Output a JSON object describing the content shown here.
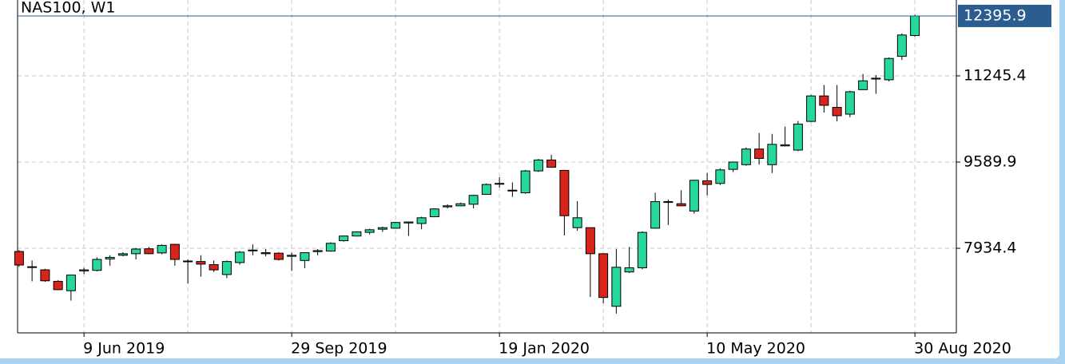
{
  "chart_data": {
    "type": "candlestick",
    "title": "NAS100, W1",
    "categories": [
      null,
      null,
      null,
      null,
      null,
      "9 Jun 2019",
      null,
      null,
      null,
      null,
      null,
      null,
      null,
      null,
      null,
      null,
      null,
      null,
      null,
      null,
      null,
      "29 Sep 2019",
      null,
      null,
      null,
      null,
      null,
      null,
      null,
      null,
      null,
      null,
      null,
      null,
      null,
      null,
      null,
      "19 Jan 2020",
      null,
      null,
      null,
      null,
      null,
      null,
      null,
      null,
      null,
      null,
      null,
      null,
      null,
      null,
      null,
      "10 May 2020",
      null,
      null,
      null,
      null,
      null,
      null,
      null,
      null,
      null,
      null,
      null,
      null,
      null,
      null,
      null,
      "30 Aug 2020"
    ],
    "open": [
      7873,
      7570,
      7520,
      7300,
      7120,
      7500,
      7510,
      7730,
      7800,
      7830,
      7925,
      7845,
      8010,
      7690,
      7680,
      7620,
      7430,
      7660,
      7890,
      7850,
      7840,
      7780,
      7700,
      7870,
      7880,
      8080,
      8170,
      8240,
      8300,
      8320,
      8420,
      8410,
      8540,
      8730,
      8750,
      8780,
      8970,
      9180,
      9050,
      9000,
      9420,
      9630,
      9430,
      8330,
      8330,
      7830,
      6820,
      7480,
      7560,
      8320,
      8820,
      8790,
      8650,
      9230,
      9180,
      9450,
      9540,
      9840,
      9540,
      9900,
      9820,
      10370,
      10860,
      10640,
      10510,
      10980,
      11190,
      11170,
      11620,
      12020
    ],
    "high": [
      7900,
      7700,
      7540,
      7320,
      7430,
      7560,
      7760,
      7800,
      7860,
      7940,
      7960,
      8010,
      8020,
      7720,
      7800,
      7700,
      7700,
      7880,
      8010,
      7920,
      7860,
      7850,
      7860,
      7920,
      8050,
      8180,
      8260,
      8310,
      8350,
      8440,
      8450,
      8540,
      8700,
      8780,
      8810,
      8960,
      9180,
      9300,
      9200,
      9440,
      9650,
      9730,
      9440,
      8840,
      8330,
      7840,
      7920,
      7960,
      8260,
      9000,
      8870,
      9050,
      9250,
      9380,
      9470,
      9600,
      9870,
      10150,
      10130,
      10270,
      10380,
      10880,
      11070,
      11070,
      10960,
      11280,
      11260,
      11600,
      12060,
      12420
    ],
    "low": [
      7580,
      7300,
      7290,
      7130,
      6930,
      7440,
      7490,
      7600,
      7780,
      7720,
      7820,
      7820,
      7600,
      7260,
      7390,
      7480,
      7360,
      7620,
      7800,
      7780,
      7700,
      7500,
      7550,
      7800,
      7870,
      8060,
      8160,
      8200,
      8250,
      8310,
      8170,
      8300,
      8530,
      8700,
      8740,
      8700,
      8960,
      9100,
      8920,
      8980,
      9400,
      9480,
      8180,
      8270,
      7000,
      6880,
      6680,
      7460,
      7530,
      8310,
      8380,
      8740,
      8600,
      8950,
      9150,
      9400,
      9520,
      9540,
      9380,
      9890,
      9800,
      10360,
      10540,
      10370,
      10450,
      10980,
      10900,
      11140,
      11550,
      12000
    ],
    "close": [
      7613,
      7580,
      7310,
      7140,
      7420,
      7520,
      7720,
      7760,
      7830,
      7920,
      7830,
      7990,
      7720,
      7680,
      7630,
      7520,
      7680,
      7860,
      7900,
      7830,
      7720,
      7800,
      7850,
      7890,
      8030,
      8170,
      8250,
      8290,
      8330,
      8430,
      8440,
      8520,
      8690,
      8750,
      8790,
      8950,
      9160,
      9170,
      9040,
      9420,
      9630,
      9490,
      8560,
      8520,
      7830,
      6990,
      7570,
      7560,
      8240,
      8830,
      8830,
      8750,
      9240,
      9160,
      9440,
      9590,
      9840,
      9660,
      9930,
      9920,
      10320,
      10860,
      10680,
      10480,
      10940,
      11150,
      11200,
      11580,
      12030,
      12395.9
    ],
    "up_color": "#26d89a",
    "down_color": "#d9241c",
    "wick_color": "#000000",
    "price_line_color": "#2b5d91",
    "ylim": [
      6310,
      12702
    ],
    "yticks": [
      7934.4,
      9589.9,
      11245.4
    ],
    "grid": true
  }
}
